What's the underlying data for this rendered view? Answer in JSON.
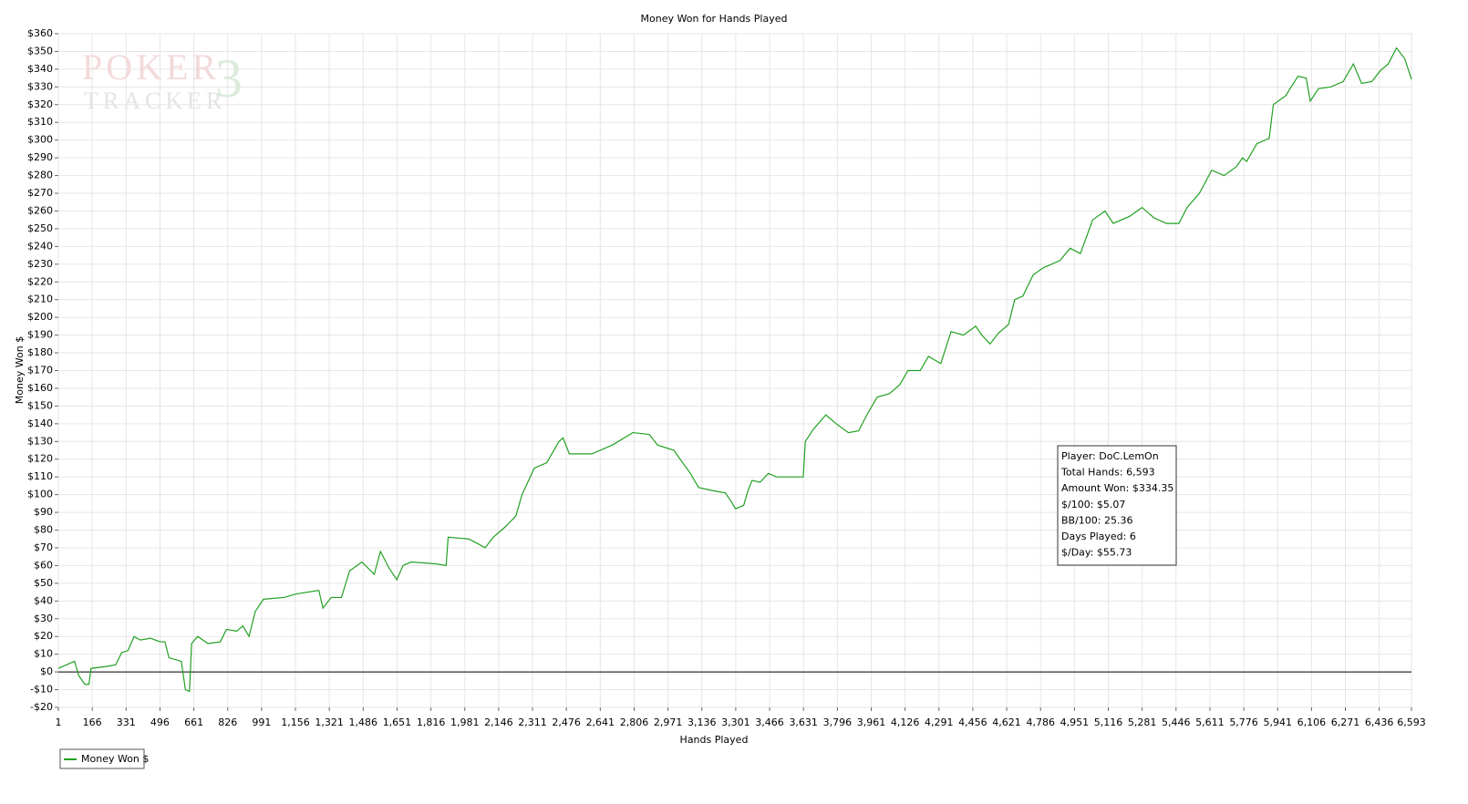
{
  "chart_data": {
    "type": "line",
    "title": "Money Won for Hands Played",
    "xlabel": "Hands Played",
    "ylabel": "Money Won $",
    "watermark": {
      "line1": "POKER",
      "line2": "TRACKER",
      "mark": "3"
    },
    "annotations": [
      "Player: DoC.LemOn",
      "Total Hands: 6,593",
      "Amount Won: $334.35",
      "$/100: $5.07",
      "BB/100: 25.36",
      "Days Played: 6",
      "$/Day: $55.73"
    ],
    "x": [
      1,
      80,
      100,
      130,
      150,
      160,
      230,
      280,
      310,
      340,
      370,
      400,
      450,
      496,
      520,
      540,
      600,
      620,
      640,
      650,
      680,
      730,
      790,
      820,
      870,
      900,
      930,
      960,
      1000,
      1100,
      1160,
      1270,
      1290,
      1330,
      1380,
      1420,
      1480,
      1540,
      1570,
      1610,
      1650,
      1680,
      1720,
      1840,
      1890,
      1900,
      2000,
      2050,
      2080,
      2120,
      2180,
      2230,
      2260,
      2320,
      2380,
      2440,
      2460,
      2490,
      2600,
      2700,
      2800,
      2880,
      2920,
      3000,
      3030,
      3080,
      3120,
      3200,
      3250,
      3280,
      3300,
      3340,
      3360,
      3380,
      3420,
      3460,
      3500,
      3590,
      3630,
      3640,
      3680,
      3740,
      3790,
      3850,
      3900,
      3940,
      3990,
      4050,
      4100,
      4140,
      4200,
      4240,
      4300,
      4350,
      4410,
      4470,
      4500,
      4540,
      4580,
      4630,
      4660,
      4700,
      4750,
      4800,
      4880,
      4930,
      4980,
      5040,
      5100,
      5140,
      5220,
      5280,
      5340,
      5400,
      5460,
      5500,
      5560,
      5620,
      5680,
      5740,
      5770,
      5790,
      5840,
      5900,
      5920,
      5980,
      6040,
      6080,
      6100,
      6140,
      6200,
      6260,
      6310,
      6350,
      6400,
      6440,
      6480,
      6520,
      6560,
      6593
    ],
    "series": [
      {
        "name": "Money Won $",
        "color": "#22a022",
        "values": [
          2,
          6,
          -2,
          -7,
          -7,
          2,
          3,
          4,
          11,
          12,
          20,
          18,
          19,
          17,
          17,
          8,
          6,
          -10,
          -11,
          16,
          20,
          16,
          17,
          24,
          23,
          26,
          20,
          34,
          41,
          42,
          44,
          46,
          36,
          42,
          42,
          57,
          62,
          55,
          68,
          59,
          52,
          60,
          62,
          61,
          60,
          76,
          75,
          72,
          70,
          76,
          82,
          88,
          100,
          115,
          118,
          130,
          132,
          123,
          123,
          128,
          135,
          134,
          128,
          125,
          120,
          112,
          104,
          102,
          101,
          96,
          92,
          94,
          102,
          108,
          107,
          112,
          110,
          110,
          110,
          130,
          137,
          145,
          140,
          135,
          136,
          145,
          155,
          157,
          162,
          170,
          170,
          178,
          174,
          192,
          190,
          195,
          190,
          185,
          191,
          196,
          210,
          212,
          224,
          228,
          232,
          239,
          236,
          255,
          260,
          253,
          257,
          262,
          256,
          253,
          253,
          262,
          270,
          283,
          280,
          285,
          290,
          288,
          298,
          301,
          320,
          325,
          336,
          335,
          322,
          329,
          330,
          333,
          343,
          332,
          333,
          339,
          343,
          352,
          346,
          334.35
        ]
      }
    ],
    "xlim": [
      1,
      6593
    ],
    "xticks": [
      1,
      166,
      331,
      496,
      661,
      826,
      991,
      {
        "value": 1156,
        "label": "1,156"
      },
      {
        "value": 1321,
        "label": "1,321"
      },
      {
        "value": 1486,
        "label": "1,486"
      },
      {
        "value": 1651,
        "label": "1,651"
      },
      {
        "value": 1816,
        "label": "1,816"
      },
      {
        "value": 1981,
        "label": "1,981"
      },
      {
        "value": 2146,
        "label": "2,146"
      },
      {
        "value": 2311,
        "label": "2,311"
      },
      {
        "value": 2476,
        "label": "2,476"
      },
      {
        "value": 2641,
        "label": "2,641"
      },
      {
        "value": 2806,
        "label": "2,806"
      },
      {
        "value": 2971,
        "label": "2,971"
      },
      {
        "value": 3136,
        "label": "3,136"
      },
      {
        "value": 3301,
        "label": "3,301"
      },
      {
        "value": 3466,
        "label": "3,466"
      },
      {
        "value": 3631,
        "label": "3,631"
      },
      {
        "value": 3796,
        "label": "3,796"
      },
      {
        "value": 3961,
        "label": "3,961"
      },
      {
        "value": 4126,
        "label": "4,126"
      },
      {
        "value": 4291,
        "label": "4,291"
      },
      {
        "value": 4456,
        "label": "4,456"
      },
      {
        "value": 4621,
        "label": "4,621"
      },
      {
        "value": 4786,
        "label": "4,786"
      },
      {
        "value": 4951,
        "label": "4,951"
      },
      {
        "value": 5116,
        "label": "5,116"
      },
      {
        "value": 5281,
        "label": "5,281"
      },
      {
        "value": 5446,
        "label": "5,446"
      },
      {
        "value": 5611,
        "label": "5,611"
      },
      {
        "value": 5776,
        "label": "5,776"
      },
      {
        "value": 5941,
        "label": "5,941"
      },
      {
        "value": 6106,
        "label": "6,106"
      },
      {
        "value": 6271,
        "label": "6,271"
      },
      {
        "value": 6436,
        "label": "6,436"
      },
      {
        "value": 6593,
        "label": "6,593"
      }
    ],
    "ylim": [
      -20,
      360
    ],
    "yticks": [
      {
        "value": -20,
        "label": "-$20"
      },
      {
        "value": -10,
        "label": "-$10"
      },
      {
        "value": 0,
        "label": "$0"
      },
      {
        "value": 10,
        "label": "$10"
      },
      {
        "value": 20,
        "label": "$20"
      },
      {
        "value": 30,
        "label": "$30"
      },
      {
        "value": 40,
        "label": "$40"
      },
      {
        "value": 50,
        "label": "$50"
      },
      {
        "value": 60,
        "label": "$60"
      },
      {
        "value": 70,
        "label": "$70"
      },
      {
        "value": 80,
        "label": "$80"
      },
      {
        "value": 90,
        "label": "$90"
      },
      {
        "value": 100,
        "label": "$100"
      },
      {
        "value": 110,
        "label": "$110"
      },
      {
        "value": 120,
        "label": "$120"
      },
      {
        "value": 130,
        "label": "$130"
      },
      {
        "value": 140,
        "label": "$140"
      },
      {
        "value": 150,
        "label": "$150"
      },
      {
        "value": 160,
        "label": "$160"
      },
      {
        "value": 170,
        "label": "$170"
      },
      {
        "value": 180,
        "label": "$180"
      },
      {
        "value": 190,
        "label": "$190"
      },
      {
        "value": 200,
        "label": "$200"
      },
      {
        "value": 210,
        "label": "$210"
      },
      {
        "value": 220,
        "label": "$220"
      },
      {
        "value": 230,
        "label": "$230"
      },
      {
        "value": 240,
        "label": "$240"
      },
      {
        "value": 250,
        "label": "$250"
      },
      {
        "value": 260,
        "label": "$260"
      },
      {
        "value": 270,
        "label": "$270"
      },
      {
        "value": 280,
        "label": "$280"
      },
      {
        "value": 290,
        "label": "$290"
      },
      {
        "value": 300,
        "label": "$300"
      },
      {
        "value": 310,
        "label": "$310"
      },
      {
        "value": 320,
        "label": "$320"
      },
      {
        "value": 330,
        "label": "$330"
      },
      {
        "value": 340,
        "label": "$340"
      },
      {
        "value": 350,
        "label": "$350"
      },
      {
        "value": 360,
        "label": "$360"
      }
    ],
    "grid": true
  }
}
